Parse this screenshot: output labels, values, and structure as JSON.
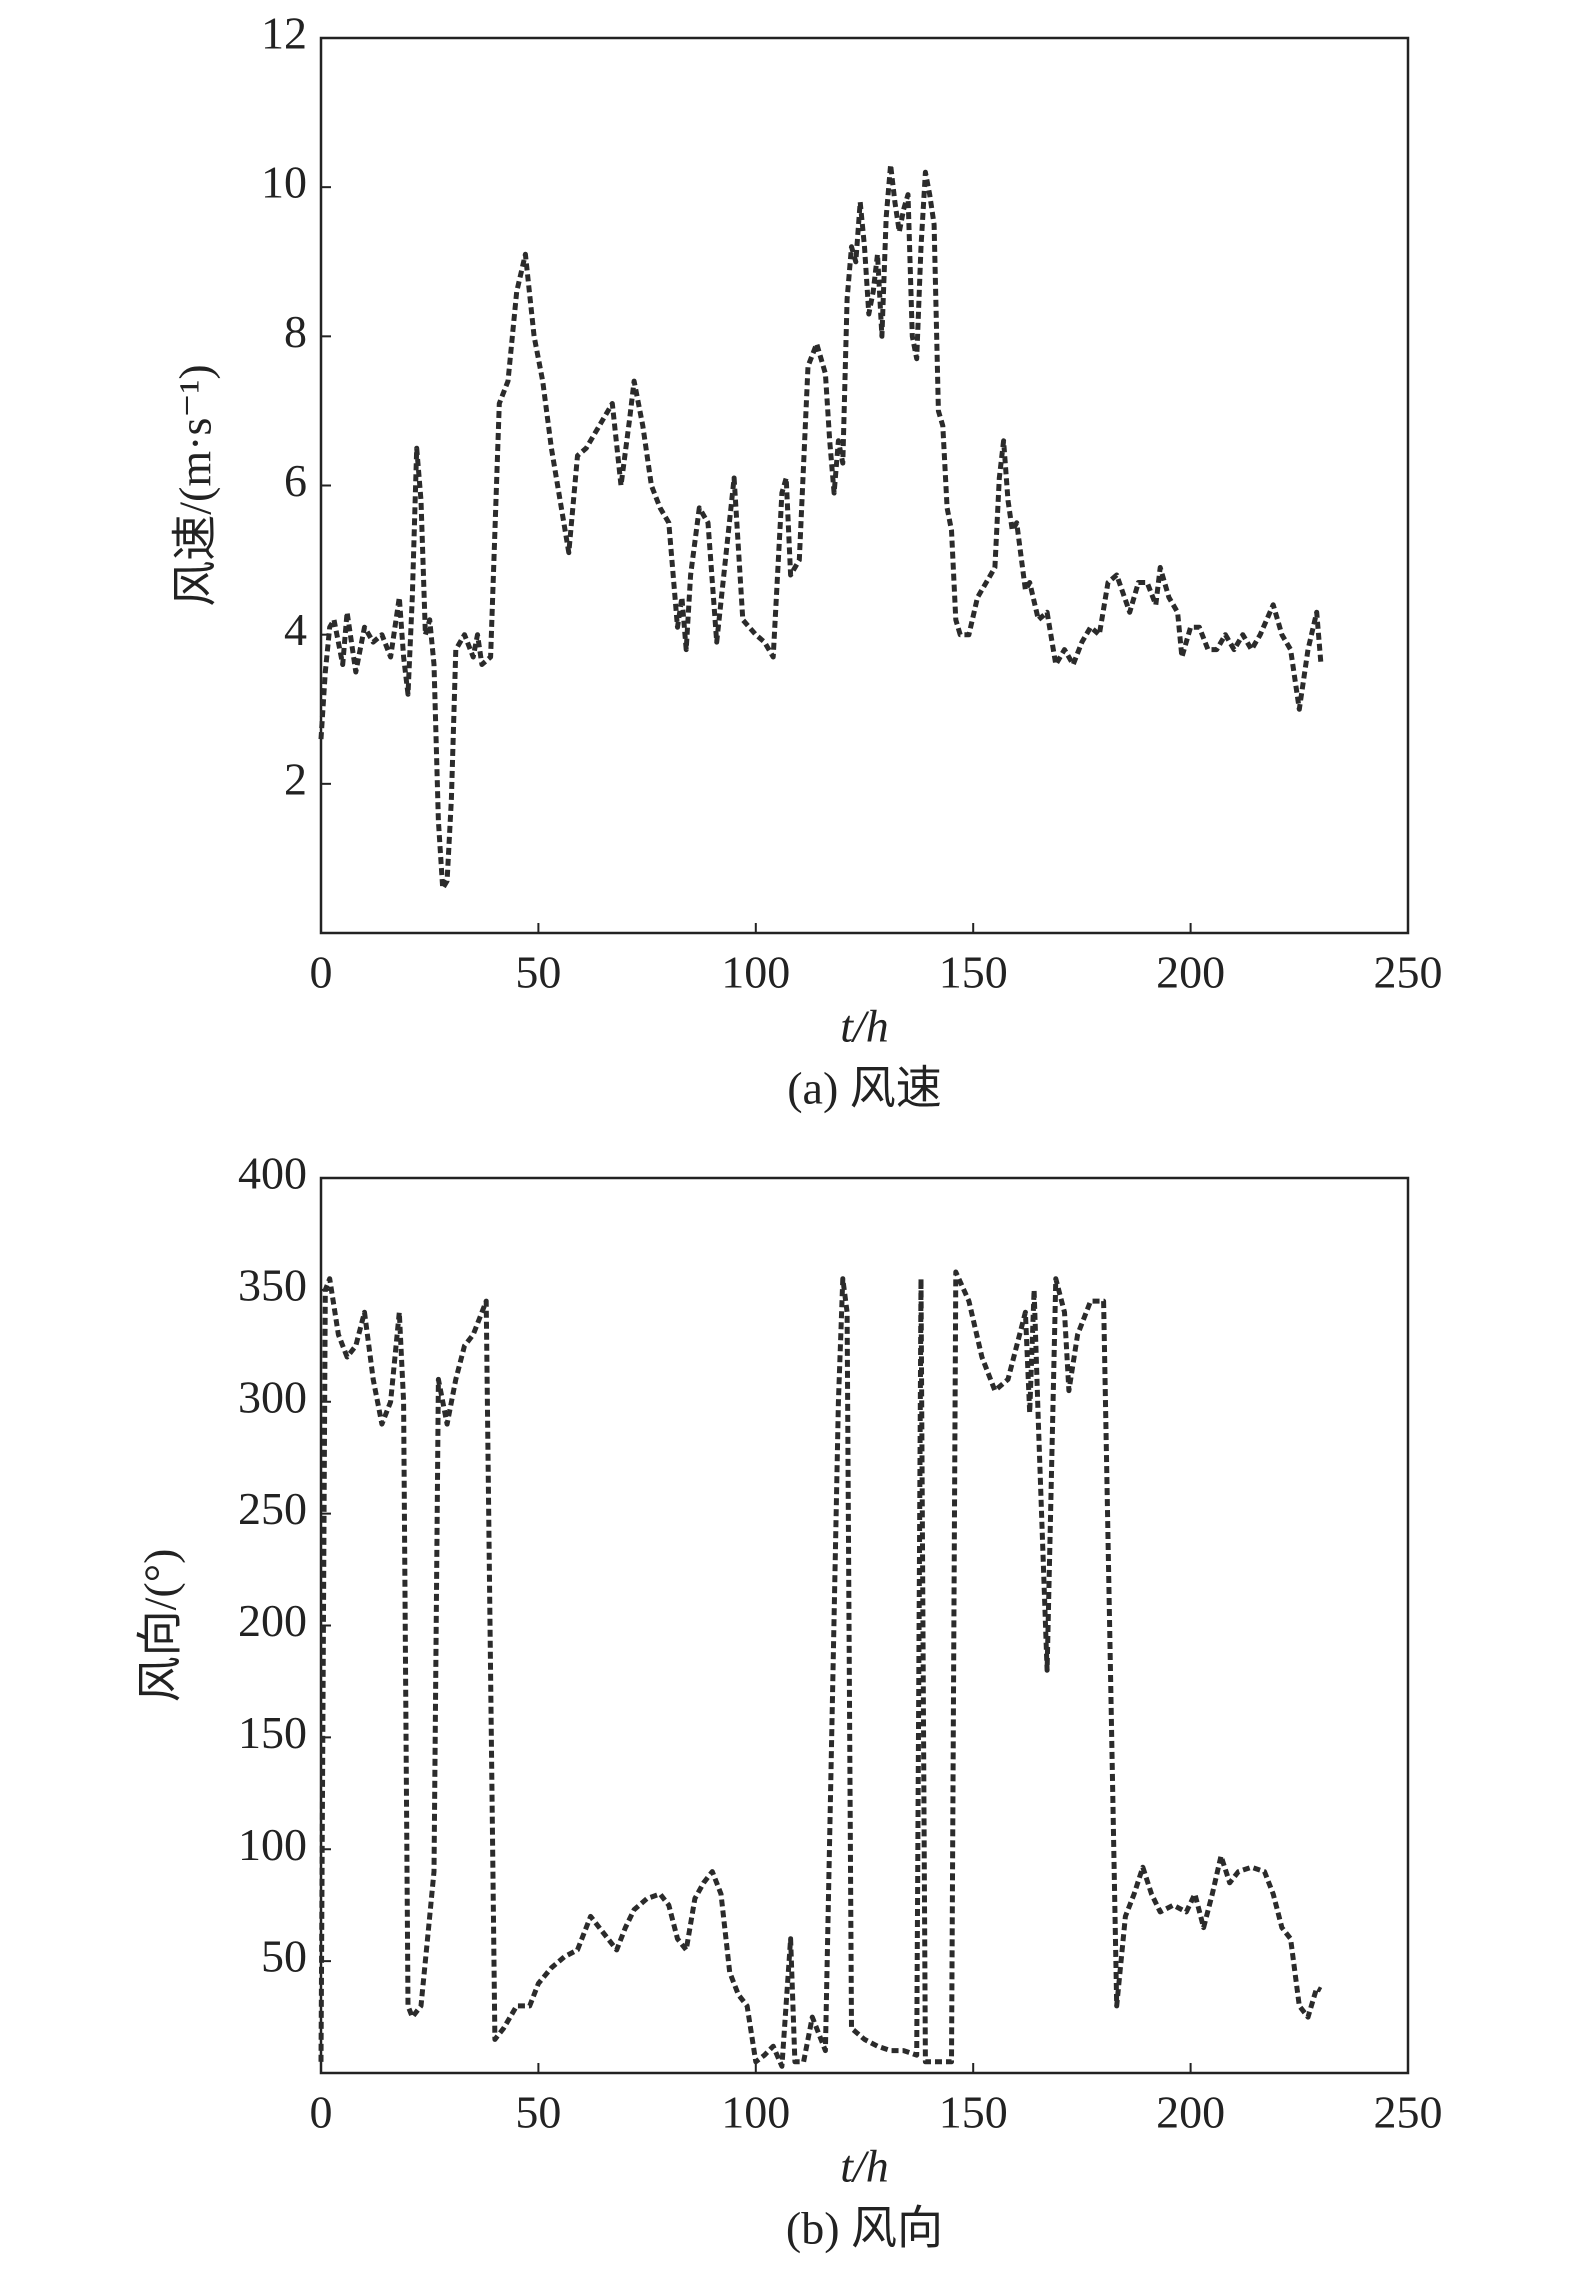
{
  "chart_data": [
    {
      "type": "line",
      "caption": "(a) 风速",
      "xlabel": "t/h",
      "ylabel": "风速/(m·s⁻¹)",
      "xlim": [
        0,
        250
      ],
      "xticks": [
        0,
        50,
        100,
        150,
        200,
        250
      ],
      "ylim": [
        0,
        12
      ],
      "yticks": [
        2,
        4,
        6,
        8,
        10,
        12
      ],
      "linestyle": "dashed",
      "x": [
        0,
        1,
        2,
        3,
        5,
        6,
        8,
        10,
        12,
        14,
        16,
        18,
        19,
        20,
        21,
        22,
        23,
        24,
        25,
        26,
        27,
        28,
        29,
        30,
        31,
        33,
        35,
        36,
        37,
        39,
        41,
        43,
        45,
        47,
        49,
        51,
        53,
        55,
        57,
        59,
        61,
        63,
        65,
        67,
        69,
        71,
        72,
        74,
        76,
        78,
        80,
        82,
        83,
        84,
        85,
        87,
        89,
        91,
        93,
        95,
        97,
        100,
        102,
        104,
        106,
        107,
        108,
        110,
        112,
        114,
        116,
        117,
        118,
        119,
        120,
        121,
        122,
        123,
        124,
        125,
        126,
        127,
        128,
        129,
        130,
        131,
        132,
        133,
        134,
        135,
        136,
        137,
        138,
        139,
        140,
        141,
        142,
        143,
        144,
        145,
        146,
        147,
        149,
        151,
        153,
        155,
        156,
        157,
        158,
        159,
        160,
        162,
        163,
        165,
        167,
        169,
        171,
        173,
        175,
        177,
        179,
        181,
        183,
        186,
        188,
        190,
        192,
        193,
        195,
        197,
        198,
        200,
        202,
        204,
        206,
        208,
        210,
        212,
        214,
        216,
        219,
        221,
        223,
        225,
        227,
        229,
        230
      ],
      "series": [
        {
          "color": "#2b2b2b",
          "values": [
            2.6,
            3.5,
            4.1,
            4.2,
            3.6,
            4.3,
            3.5,
            4.1,
            3.9,
            4.0,
            3.7,
            4.5,
            3.7,
            3.2,
            4.5,
            6.5,
            5.8,
            4.0,
            4.2,
            3.6,
            1.5,
            0.6,
            0.7,
            1.8,
            3.8,
            4.0,
            3.7,
            4.0,
            3.6,
            3.7,
            7.1,
            7.4,
            8.6,
            9.1,
            8.0,
            7.4,
            6.5,
            5.8,
            5.1,
            6.4,
            6.5,
            6.7,
            6.9,
            7.1,
            6.0,
            6.9,
            7.4,
            6.8,
            6.0,
            5.7,
            5.5,
            4.1,
            4.5,
            3.8,
            4.8,
            5.7,
            5.5,
            3.9,
            5.0,
            6.1,
            4.2,
            4.0,
            3.9,
            3.7,
            5.9,
            6.1,
            4.8,
            5.0,
            7.6,
            7.9,
            7.5,
            6.6,
            5.9,
            6.6,
            6.3,
            8.5,
            9.2,
            9.0,
            9.8,
            9.2,
            8.3,
            8.6,
            9.1,
            8.0,
            9.6,
            10.3,
            9.8,
            9.4,
            9.7,
            9.9,
            8.0,
            7.7,
            9.2,
            10.2,
            9.9,
            9.5,
            7.0,
            6.8,
            5.7,
            5.4,
            4.2,
            4.0,
            4.0,
            4.5,
            4.7,
            4.9,
            6.1,
            6.6,
            5.8,
            5.4,
            5.5,
            4.6,
            4.7,
            4.2,
            4.3,
            3.6,
            3.8,
            3.6,
            3.9,
            4.1,
            4.0,
            4.7,
            4.8,
            4.3,
            4.7,
            4.7,
            4.4,
            4.9,
            4.5,
            4.3,
            3.7,
            4.1,
            4.1,
            3.8,
            3.8,
            4.0,
            3.8,
            4.0,
            3.8,
            4.0,
            4.4,
            4.0,
            3.8,
            3.0,
            3.8,
            4.3,
            3.6
          ]
        }
      ]
    },
    {
      "type": "line",
      "caption": "(b) 风向",
      "xlabel": "t/h",
      "ylabel": "风向/(°)",
      "xlim": [
        0,
        250
      ],
      "xticks": [
        0,
        50,
        100,
        150,
        200,
        250
      ],
      "ylim": [
        0,
        400
      ],
      "yticks": [
        50,
        100,
        150,
        200,
        250,
        300,
        350,
        400
      ],
      "linestyle": "dashed",
      "x": [
        0,
        1,
        2,
        4,
        6,
        8,
        10,
        12,
        14,
        16,
        18,
        19,
        20,
        21,
        23,
        25,
        26,
        27,
        29,
        31,
        33,
        35,
        37,
        38,
        40,
        42,
        45,
        48,
        50,
        53,
        56,
        59,
        62,
        64,
        66,
        68,
        70,
        72,
        75,
        78,
        80,
        82,
        84,
        86,
        88,
        90,
        92,
        94,
        96,
        98,
        100,
        102,
        104,
        106,
        108,
        109,
        111,
        113,
        115,
        116,
        119,
        120,
        121,
        122,
        125,
        128,
        131,
        134,
        137,
        138,
        139,
        145,
        146,
        149,
        152,
        155,
        158,
        160,
        162,
        163,
        164,
        165,
        167,
        169,
        171,
        172,
        174,
        177,
        180,
        183,
        185,
        187,
        189,
        191,
        193,
        196,
        199,
        201,
        203,
        205,
        207,
        209,
        211,
        214,
        217,
        219,
        221,
        223,
        225,
        227,
        229,
        230
      ],
      "series": [
        {
          "color": "#2b2b2b",
          "values": [
            5,
            350,
            355,
            330,
            320,
            325,
            340,
            310,
            290,
            300,
            340,
            300,
            30,
            25,
            30,
            70,
            90,
            310,
            290,
            310,
            325,
            330,
            340,
            345,
            15,
            20,
            30,
            30,
            40,
            47,
            52,
            55,
            70,
            65,
            60,
            55,
            65,
            73,
            78,
            80,
            75,
            60,
            55,
            78,
            85,
            90,
            80,
            45,
            35,
            30,
            5,
            8,
            12,
            3,
            60,
            5,
            5,
            25,
            15,
            10,
            300,
            355,
            340,
            20,
            15,
            12,
            10,
            10,
            8,
            355,
            5,
            5,
            358,
            345,
            320,
            305,
            310,
            325,
            340,
            295,
            350,
            290,
            180,
            355,
            340,
            305,
            330,
            345,
            345,
            30,
            70,
            80,
            92,
            80,
            72,
            75,
            72,
            80,
            65,
            80,
            97,
            85,
            90,
            92,
            90,
            80,
            65,
            60,
            30,
            25,
            38,
            37
          ]
        }
      ]
    }
  ]
}
